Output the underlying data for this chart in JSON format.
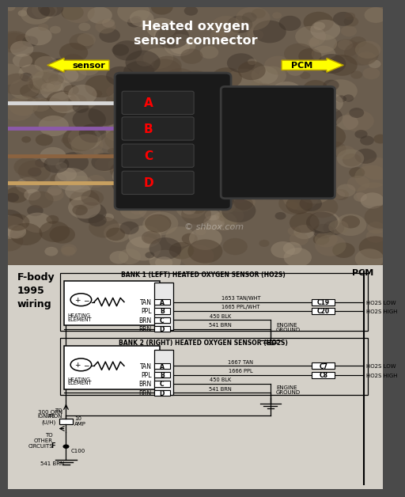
{
  "title_top": "Heated oxygen\nsensor connector",
  "arrow_left_label": "sensor",
  "arrow_right_label": "PCM",
  "connector_labels": [
    "D",
    "C",
    "B",
    "A"
  ],
  "connector_label_color": "#ff0000",
  "fbody_text": "F-body\n1995\nwiring",
  "bank1_title": "BANK 1 (LEFT) HEATED OXYGEN SENSOR (HO2S)",
  "bank2_title": "BANK 2 (RIGHT) HEATED OXYGEN SENSOR (HO2S)",
  "pcm_label": "PCM",
  "bank1_rows": [
    [
      "A",
      8.35,
      "TAN",
      "1653 TAN/WHT",
      "C19",
      "HO2S LOW"
    ],
    [
      "B",
      7.95,
      "PPL",
      "1665 PPL/WHT",
      "C20",
      "HO2S HIGH"
    ],
    [
      "C",
      7.55,
      "BRN",
      "450 BLK",
      null,
      null
    ],
    [
      "D",
      7.15,
      "BRN",
      "541 BRN",
      null,
      null
    ]
  ],
  "bank2_rows": [
    [
      "A",
      5.5,
      "TAN",
      "1667 TAN",
      "C7",
      "HO2S LOW"
    ],
    [
      "B",
      5.1,
      "PPL",
      "1666 PPL",
      "C8",
      "HO2S HIGH"
    ],
    [
      "C",
      4.7,
      "BRN",
      "450 BLK",
      null,
      null
    ],
    [
      "D",
      4.3,
      "BRN",
      "541 BRN",
      null,
      null
    ]
  ],
  "watermark": "© shbox.com",
  "photo_bg": "#6a5d4e",
  "diag_bg": "#d4d0c8"
}
